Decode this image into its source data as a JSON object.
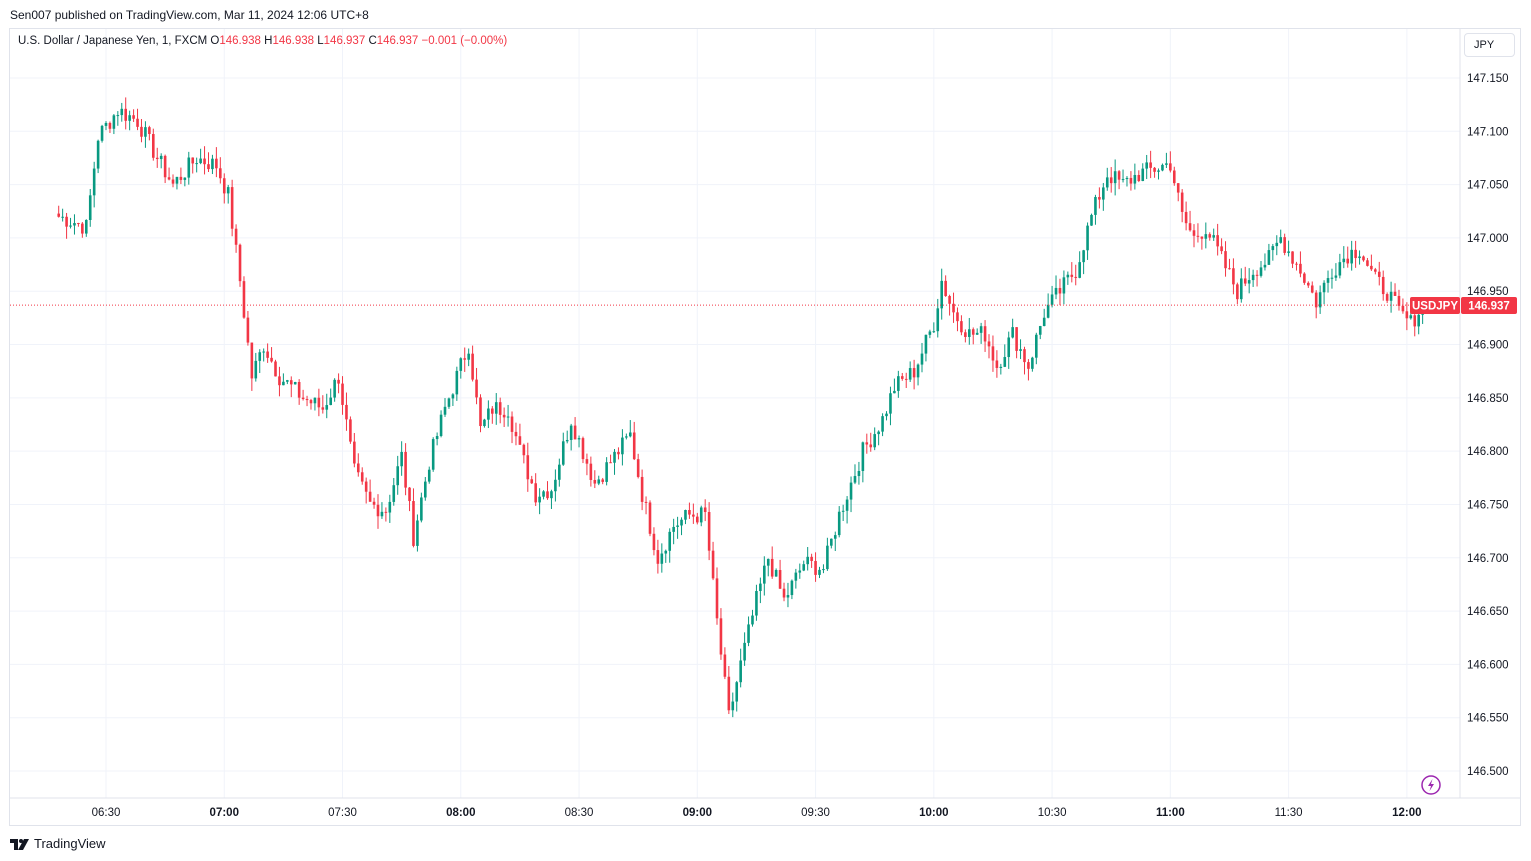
{
  "header": {
    "published_line": "Sen007 published on TradingView.com, Mar 11, 2024 12:06 UTC+8"
  },
  "legend": {
    "symbol_desc": "U.S. Dollar / Japanese Yen, 1, FXCM",
    "o_label": "O",
    "o_value": "146.938",
    "h_label": "H",
    "h_value": "146.938",
    "l_label": "L",
    "l_value": "146.937",
    "c_label": "C",
    "c_value": "146.937",
    "change": "−0.001 (−0.00%)"
  },
  "currency_button": "JPY",
  "last_price_tag": {
    "symbol": "USDJPY",
    "price": "146.937"
  },
  "footer": {
    "brand": "TradingView"
  },
  "colors": {
    "up": "#089981",
    "down": "#f23645",
    "grid": "#f0f3fa",
    "price_line": "#f23645"
  },
  "chart_data": {
    "type": "candlestick",
    "symbol": "USDJPY",
    "timeframe": "1",
    "x_ticks": [
      {
        "label": "06:30",
        "bold": false
      },
      {
        "label": "07:00",
        "bold": true
      },
      {
        "label": "07:30",
        "bold": false
      },
      {
        "label": "08:00",
        "bold": true
      },
      {
        "label": "08:30",
        "bold": false
      },
      {
        "label": "09:00",
        "bold": true
      },
      {
        "label": "09:30",
        "bold": false
      },
      {
        "label": "10:00",
        "bold": true
      },
      {
        "label": "10:30",
        "bold": false
      },
      {
        "label": "11:00",
        "bold": true
      },
      {
        "label": "11:30",
        "bold": false
      },
      {
        "label": "12:00",
        "bold": true
      }
    ],
    "y_ticks": [
      "147.150",
      "147.100",
      "147.050",
      "147.000",
      "146.950",
      "146.900",
      "146.850",
      "146.800",
      "146.750",
      "146.700",
      "146.650",
      "146.600",
      "146.550",
      "146.500"
    ],
    "ylim": [
      146.48,
      147.19
    ],
    "last_price": 146.937,
    "close_anchors": [
      [
        "06:18",
        147.02
      ],
      [
        "06:22",
        147.015
      ],
      [
        "06:25",
        147.01
      ],
      [
        "06:28",
        147.095
      ],
      [
        "06:33",
        147.12
      ],
      [
        "06:38",
        147.11
      ],
      [
        "06:43",
        147.075
      ],
      [
        "06:47",
        147.05
      ],
      [
        "06:53",
        147.075
      ],
      [
        "06:58",
        147.068
      ],
      [
        "07:01",
        147.04
      ],
      [
        "07:04",
        146.96
      ],
      [
        "07:07",
        146.87
      ],
      [
        "07:10",
        146.9
      ],
      [
        "07:14",
        146.87
      ],
      [
        "07:20",
        146.85
      ],
      [
        "07:25",
        146.84
      ],
      [
        "07:29",
        146.87
      ],
      [
        "07:33",
        146.78
      ],
      [
        "07:37",
        146.75
      ],
      [
        "07:41",
        146.745
      ],
      [
        "07:45",
        146.795
      ],
      [
        "07:48",
        146.72
      ],
      [
        "07:52",
        146.79
      ],
      [
        "07:56",
        146.84
      ],
      [
        "08:02",
        146.9
      ],
      [
        "08:05",
        146.82
      ],
      [
        "08:08",
        146.84
      ],
      [
        "08:12",
        146.84
      ],
      [
        "08:15",
        146.8
      ],
      [
        "08:19",
        146.76
      ],
      [
        "08:23",
        146.765
      ],
      [
        "08:28",
        146.83
      ],
      [
        "08:31",
        146.8
      ],
      [
        "08:34",
        146.77
      ],
      [
        "08:38",
        146.79
      ],
      [
        "08:43",
        146.815
      ],
      [
        "08:46",
        146.76
      ],
      [
        "08:50",
        146.7
      ],
      [
        "08:54",
        146.73
      ],
      [
        "08:58",
        146.74
      ],
      [
        "09:02",
        146.74
      ],
      [
        "09:05",
        146.64
      ],
      [
        "09:08",
        146.55
      ],
      [
        "09:11",
        146.6
      ],
      [
        "09:15",
        146.66
      ],
      [
        "09:18",
        146.7
      ],
      [
        "09:22",
        146.66
      ],
      [
        "09:27",
        146.695
      ],
      [
        "09:32",
        146.69
      ],
      [
        "09:36",
        146.74
      ],
      [
        "09:42",
        146.8
      ],
      [
        "09:47",
        146.83
      ],
      [
        "09:50",
        146.86
      ],
      [
        "09:55",
        146.875
      ],
      [
        "10:00",
        146.92
      ],
      [
        "10:02",
        146.96
      ],
      [
        "10:05",
        146.93
      ],
      [
        "10:09",
        146.91
      ],
      [
        "10:13",
        146.91
      ],
      [
        "10:16",
        146.88
      ],
      [
        "10:20",
        146.91
      ],
      [
        "10:24",
        146.88
      ],
      [
        "10:28",
        146.93
      ],
      [
        "10:32",
        146.95
      ],
      [
        "10:36",
        146.97
      ],
      [
        "10:40",
        147.02
      ],
      [
        "10:44",
        147.06
      ],
      [
        "10:48",
        147.05
      ],
      [
        "10:52",
        147.06
      ],
      [
        "10:56",
        147.065
      ],
      [
        "11:00",
        147.07
      ],
      [
        "11:03",
        147.02
      ],
      [
        "11:06",
        147.0
      ],
      [
        "11:09",
        147.01
      ],
      [
        "11:13",
        146.98
      ],
      [
        "11:17",
        146.95
      ],
      [
        "11:21",
        146.97
      ],
      [
        "11:25",
        146.98
      ],
      [
        "11:28",
        147.0
      ],
      [
        "11:33",
        146.97
      ],
      [
        "11:37",
        146.94
      ],
      [
        "11:41",
        146.97
      ],
      [
        "11:45",
        146.985
      ],
      [
        "11:48",
        146.99
      ],
      [
        "11:52",
        146.96
      ],
      [
        "11:55",
        146.95
      ],
      [
        "11:58",
        146.93
      ],
      [
        "12:01",
        146.92
      ],
      [
        "12:04",
        146.937
      ]
    ]
  }
}
